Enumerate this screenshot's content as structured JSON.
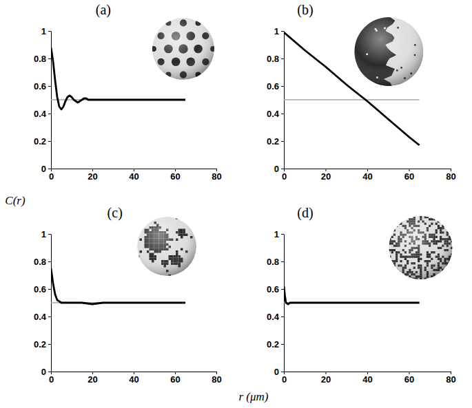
{
  "chart_data": [
    {
      "type": "line",
      "title": "(a)",
      "x": [
        0,
        1,
        2,
        3,
        4,
        5,
        6,
        7,
        8,
        9,
        10,
        11,
        12,
        13,
        14,
        15,
        16,
        17,
        18,
        20,
        25,
        30,
        35,
        40,
        45,
        50,
        55,
        60,
        65
      ],
      "series": [
        {
          "color": "#000000",
          "values": [
            0.88,
            0.78,
            0.64,
            0.52,
            0.45,
            0.43,
            0.45,
            0.49,
            0.52,
            0.53,
            0.52,
            0.5,
            0.49,
            0.48,
            0.49,
            0.5,
            0.51,
            0.51,
            0.5,
            0.5,
            0.5,
            0.5,
            0.5,
            0.5,
            0.5,
            0.5,
            0.5,
            0.5,
            0.5
          ]
        }
      ],
      "reference_line": {
        "x": [
          0,
          65
        ],
        "y": [
          0.5,
          0.5
        ],
        "color": "#a6a6a6"
      },
      "xlim": [
        0,
        80
      ],
      "xticks": [
        0,
        20,
        40,
        60,
        80
      ],
      "ylim": [
        0,
        1
      ],
      "yticks": [
        0,
        0.2,
        0.4,
        0.6,
        0.8,
        1
      ],
      "grid": false
    },
    {
      "type": "line",
      "title": "(b)",
      "x": [
        0,
        10,
        20,
        30,
        40,
        50,
        60,
        65
      ],
      "series": [
        {
          "color": "#000000",
          "values": [
            0.99,
            0.86,
            0.74,
            0.61,
            0.49,
            0.36,
            0.23,
            0.17
          ]
        }
      ],
      "reference_line": {
        "x": [
          0,
          65
        ],
        "y": [
          0.5,
          0.5
        ],
        "color": "#a6a6a6"
      },
      "xlim": [
        0,
        80
      ],
      "xticks": [
        0,
        20,
        40,
        60,
        80
      ],
      "ylim": [
        0,
        1
      ],
      "yticks": [
        0,
        0.2,
        0.4,
        0.6,
        0.8,
        1
      ],
      "grid": false
    },
    {
      "type": "line",
      "title": "(c)",
      "x": [
        0,
        1,
        2,
        3,
        4,
        5,
        6,
        8,
        10,
        15,
        20,
        25,
        30,
        35,
        40,
        45,
        50,
        55,
        60,
        65
      ],
      "series": [
        {
          "color": "#000000",
          "values": [
            0.75,
            0.64,
            0.56,
            0.52,
            0.51,
            0.5,
            0.5,
            0.5,
            0.5,
            0.5,
            0.49,
            0.5,
            0.5,
            0.5,
            0.5,
            0.5,
            0.5,
            0.5,
            0.5,
            0.5
          ]
        }
      ],
      "reference_line": {
        "x": [
          0,
          65
        ],
        "y": [
          0.5,
          0.5
        ],
        "color": "#a6a6a6"
      },
      "xlim": [
        0,
        80
      ],
      "xticks": [
        0,
        20,
        40,
        60,
        80
      ],
      "ylim": [
        0,
        1
      ],
      "yticks": [
        0,
        0.2,
        0.4,
        0.6,
        0.8,
        1
      ],
      "grid": false
    },
    {
      "type": "line",
      "title": "(d)",
      "x": [
        0,
        0.5,
        1,
        2,
        3,
        4,
        5,
        10,
        20,
        30,
        40,
        50,
        60,
        65
      ],
      "series": [
        {
          "color": "#000000",
          "values": [
            0.62,
            0.55,
            0.5,
            0.49,
            0.5,
            0.5,
            0.5,
            0.5,
            0.5,
            0.5,
            0.5,
            0.5,
            0.5,
            0.5
          ]
        }
      ],
      "reference_line": {
        "x": [
          0,
          65
        ],
        "y": [
          0.5,
          0.5
        ],
        "color": "#a6a6a6"
      },
      "xlim": [
        0,
        80
      ],
      "xticks": [
        0,
        20,
        40,
        60,
        80
      ],
      "ylim": [
        0,
        1
      ],
      "yticks": [
        0,
        0.2,
        0.4,
        0.6,
        0.8,
        1
      ],
      "grid": false
    }
  ],
  "xlabel": "r (μm)",
  "ylabel": "C(r)"
}
